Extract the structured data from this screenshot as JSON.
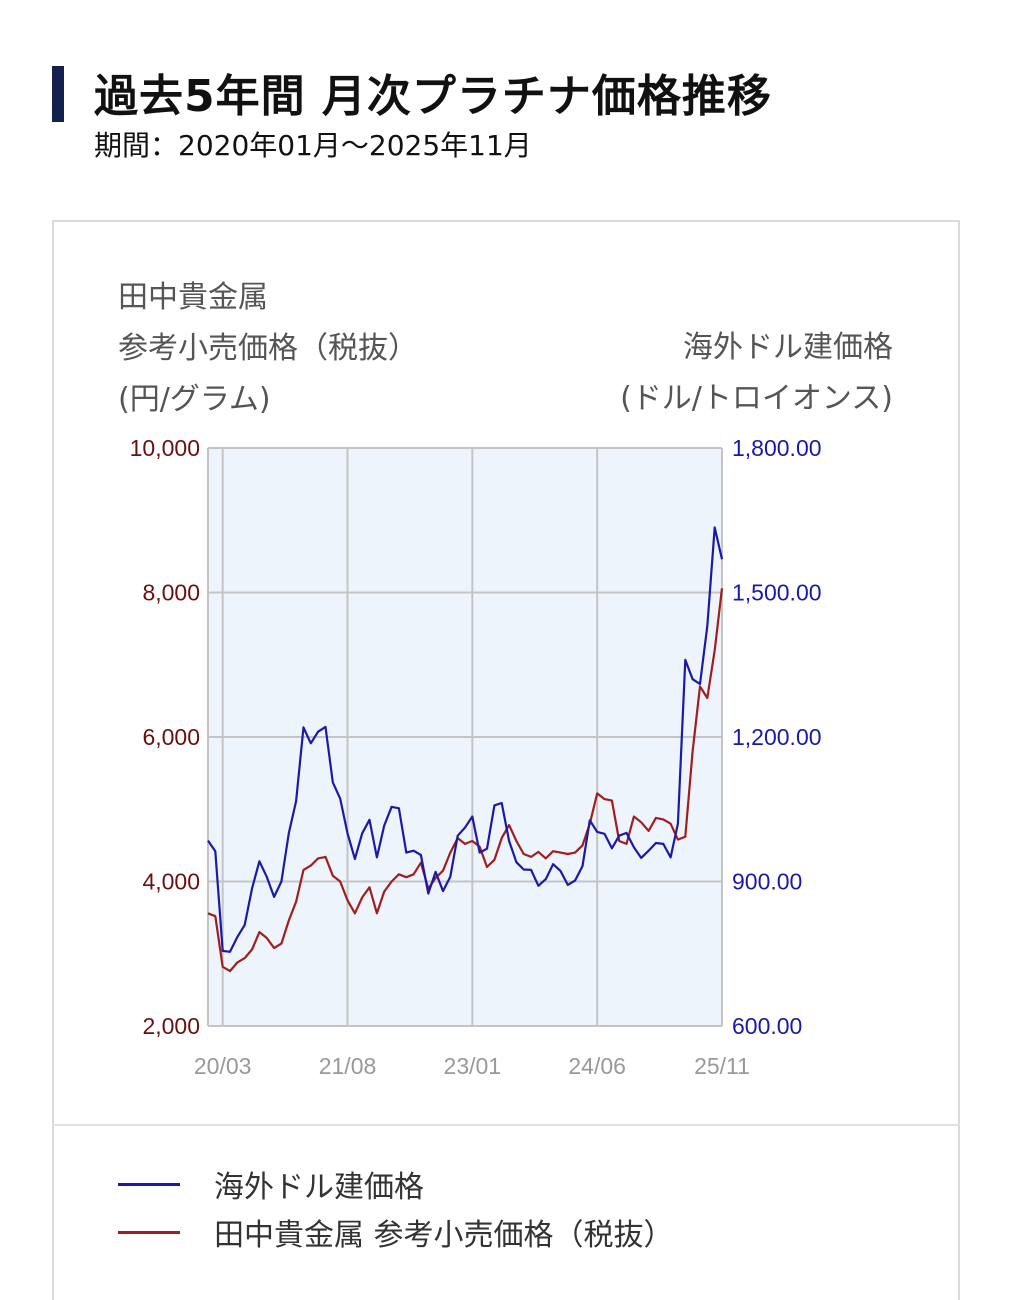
{
  "header": {
    "title": "過去5年間 月次プラチナ価格推移",
    "period": "期間：2020年01月～2025年11月"
  },
  "axis_captions": {
    "left": [
      "田中貴金属",
      "参考小売価格（税抜）",
      "(円/グラム)"
    ],
    "right": [
      "海外ドル建価格",
      "(ドル/トロイオンス)"
    ]
  },
  "legend": [
    {
      "label": "海外ドル建価格",
      "color": "#1a1aa6"
    },
    {
      "label": "田中貴金属 参考小売価格（税抜）",
      "color": "#a01e1e"
    }
  ],
  "chart_data": {
    "type": "line",
    "x": [
      "20/01",
      "20/02",
      "20/03",
      "20/04",
      "20/05",
      "20/06",
      "20/07",
      "20/08",
      "20/09",
      "20/10",
      "20/11",
      "20/12",
      "21/01",
      "21/02",
      "21/03",
      "21/04",
      "21/05",
      "21/06",
      "21/07",
      "21/08",
      "21/09",
      "21/10",
      "21/11",
      "21/12",
      "22/01",
      "22/02",
      "22/03",
      "22/04",
      "22/05",
      "22/06",
      "22/07",
      "22/08",
      "22/09",
      "22/10",
      "22/11",
      "22/12",
      "23/01",
      "23/02",
      "23/03",
      "23/04",
      "23/05",
      "23/06",
      "23/07",
      "23/08",
      "23/09",
      "23/10",
      "23/11",
      "23/12",
      "24/01",
      "24/02",
      "24/03",
      "24/04",
      "24/05",
      "24/06",
      "24/07",
      "24/08",
      "24/09",
      "24/10",
      "24/11",
      "24/12",
      "25/01",
      "25/02",
      "25/03",
      "25/04",
      "25/05",
      "25/06",
      "25/07",
      "25/08",
      "25/09",
      "25/10",
      "25/11"
    ],
    "x_tick_labels": [
      "20/03",
      "21/08",
      "23/01",
      "24/06",
      "25/11"
    ],
    "y_left": {
      "ticks": [
        "10,000",
        "8,000",
        "6,000",
        "4,000",
        "2,000"
      ],
      "range": [
        2000,
        10000
      ],
      "color": "#6b1010"
    },
    "y_right": {
      "ticks": [
        "1,800.00",
        "1,500.00",
        "1,200.00",
        "900.00",
        "600.00"
      ],
      "range": [
        600,
        1800
      ],
      "color": "#1a1aa6"
    },
    "grid": true,
    "plot_background": "#eef4fb",
    "series": [
      {
        "name": "海外ドル建価格",
        "axis": "right",
        "color": "#1a1aa6",
        "values": [
          985,
          963,
          756,
          754,
          785,
          810,
          886,
          942,
          910,
          868,
          900,
          1000,
          1067,
          1220,
          1187,
          1211,
          1221,
          1106,
          1072,
          1000,
          947,
          1000,
          1028,
          950,
          1016,
          1055,
          1052,
          960,
          964,
          955,
          875,
          920,
          880,
          910,
          995,
          1012,
          1035,
          960,
          968,
          1058,
          1063,
          984,
          940,
          925,
          924,
          891,
          905,
          936,
          922,
          893,
          902,
          932,
          1027,
          1003,
          999,
          969,
          995,
          1001,
          971,
          949,
          964,
          980,
          978,
          950,
          1020,
          1360,
          1320,
          1310,
          1430,
          1635,
          1569
        ]
      },
      {
        "name": "田中貴金属 参考小売価格（税抜）",
        "axis": "left",
        "color": "#a01e1e",
        "values": [
          3560,
          3520,
          2820,
          2760,
          2880,
          2940,
          3060,
          3300,
          3220,
          3080,
          3140,
          3460,
          3720,
          4160,
          4220,
          4320,
          4340,
          4080,
          4000,
          3740,
          3560,
          3780,
          3920,
          3560,
          3860,
          4000,
          4100,
          4060,
          4100,
          4260,
          3900,
          4050,
          4150,
          4400,
          4600,
          4520,
          4560,
          4480,
          4200,
          4300,
          4600,
          4780,
          4560,
          4380,
          4340,
          4410,
          4320,
          4420,
          4400,
          4380,
          4400,
          4500,
          4800,
          5220,
          5140,
          5120,
          4560,
          4520,
          4900,
          4820,
          4700,
          4880,
          4860,
          4800,
          4580,
          4620,
          5800,
          6700,
          6540,
          7200,
          8060
        ]
      }
    ]
  }
}
